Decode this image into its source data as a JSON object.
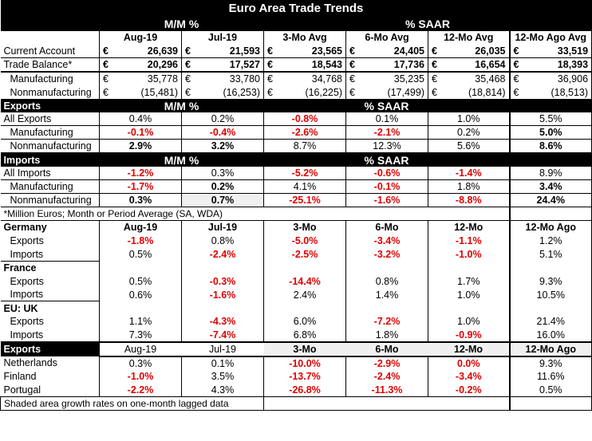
{
  "title": "Euro Area Trade Trends",
  "top": {
    "mm": "M/M %",
    "saar": "% SAAR",
    "cols": [
      "Aug-19",
      "Jul-19",
      "3-Mo Avg",
      "6-Mo Avg",
      "12-Mo Avg",
      "12-Mo Ago Avg"
    ],
    "currency": "€",
    "rows": [
      {
        "label": "Current Account",
        "vals": [
          "26,639",
          "21,593",
          "23,565",
          "24,405",
          "26,035",
          "33,519"
        ]
      },
      {
        "label": "Trade Balance*",
        "vals": [
          "20,296",
          "17,527",
          "18,543",
          "17,736",
          "16,654",
          "18,393"
        ]
      },
      {
        "label": "Manufacturing",
        "vals": [
          "35,778",
          "33,780",
          "34,768",
          "35,235",
          "35,468",
          "36,906"
        ]
      },
      {
        "label": "Nonmanufacturing",
        "vals": [
          "(15,481)",
          "(16,253)",
          "(16,225)",
          "(17,499)",
          "(18,814)",
          "(18,513)"
        ]
      }
    ]
  },
  "exports": {
    "head": "Exports",
    "mm": "M/M %",
    "saar": "% SAAR",
    "rows": [
      {
        "label": "All Exports",
        "vals": [
          "0.4%",
          "0.2%",
          "-0.8%",
          "0.1%",
          "1.0%",
          "5.5%"
        ]
      },
      {
        "label": "Manufacturing",
        "vals": [
          "-0.1%",
          "-0.4%",
          "-2.6%",
          "-2.1%",
          "0.2%",
          "5.0%"
        ]
      },
      {
        "label": "Nonmanufacturing",
        "vals": [
          "2.9%",
          "3.2%",
          "8.7%",
          "12.3%",
          "5.6%",
          "8.6%"
        ]
      }
    ]
  },
  "imports": {
    "head": "Imports",
    "mm": "M/M %",
    "saar": "% SAAR",
    "rows": [
      {
        "label": "All Imports",
        "vals": [
          "-1.2%",
          "0.3%",
          "-5.2%",
          "-0.6%",
          "-1.4%",
          "8.9%"
        ]
      },
      {
        "label": "Manufacturing",
        "vals": [
          "-1.7%",
          "0.2%",
          "4.1%",
          "-0.1%",
          "1.8%",
          "3.4%"
        ]
      },
      {
        "label": "Nonmanufacturing",
        "vals": [
          "0.3%",
          "0.7%",
          "-25.1%",
          "-1.6%",
          "-8.8%",
          "24.4%"
        ]
      }
    ]
  },
  "footnote_millions": "*Million Euros; Month or Period Average (SA, WDA)",
  "country_cols": [
    "Aug-19",
    "Jul-19",
    "3-Mo",
    "6-Mo",
    "12-Mo",
    "12-Mo Ago"
  ],
  "countries": [
    {
      "name": "Germany",
      "rows": [
        {
          "label": "Exports",
          "vals": [
            "-1.8%",
            "0.8%",
            "-5.0%",
            "-3.4%",
            "-1.1%",
            "1.2%"
          ]
        },
        {
          "label": "Imports",
          "vals": [
            "0.5%",
            "-2.4%",
            "-2.5%",
            "-3.2%",
            "-1.0%",
            "5.1%"
          ]
        }
      ]
    },
    {
      "name": "France",
      "rows": [
        {
          "label": "Exports",
          "vals": [
            "0.5%",
            "-0.3%",
            "-14.4%",
            "0.8%",
            "1.7%",
            "9.3%"
          ]
        },
        {
          "label": "Imports",
          "vals": [
            "0.6%",
            "-1.6%",
            "2.4%",
            "1.4%",
            "1.0%",
            "10.5%"
          ]
        }
      ]
    },
    {
      "name": "EU: UK",
      "rows": [
        {
          "label": "Exports",
          "vals": [
            "1.1%",
            "-4.3%",
            "6.0%",
            "-7.2%",
            "1.0%",
            "21.4%"
          ]
        },
        {
          "label": "Imports",
          "vals": [
            "7.3%",
            "-7.4%",
            "6.8%",
            "1.8%",
            "-0.9%",
            "16.0%"
          ]
        }
      ]
    }
  ],
  "exp_dest": {
    "head": "Exports",
    "cols": [
      "Aug-19",
      "Jul-19",
      "3-Mo",
      "6-Mo",
      "12-Mo",
      "12-Mo Ago"
    ],
    "rows": [
      {
        "label": "Netherlands",
        "vals": [
          "0.3%",
          "0.1%",
          "-10.0%",
          "-2.9%",
          "0.0%",
          "9.3%"
        ]
      },
      {
        "label": "Finland",
        "vals": [
          "-1.0%",
          "3.5%",
          "-13.7%",
          "-2.4%",
          "-3.4%",
          "11.6%"
        ]
      },
      {
        "label": "Portugal",
        "vals": [
          "-2.2%",
          "4.3%",
          "-26.8%",
          "-11.3%",
          "-0.2%",
          "0.5%"
        ]
      }
    ]
  },
  "footnote_shaded": "Shaded area growth rates on one-month lagged data",
  "colors": {
    "negative": "#e00000",
    "header_bg": "#000000",
    "shade": "#f0f0f0"
  }
}
